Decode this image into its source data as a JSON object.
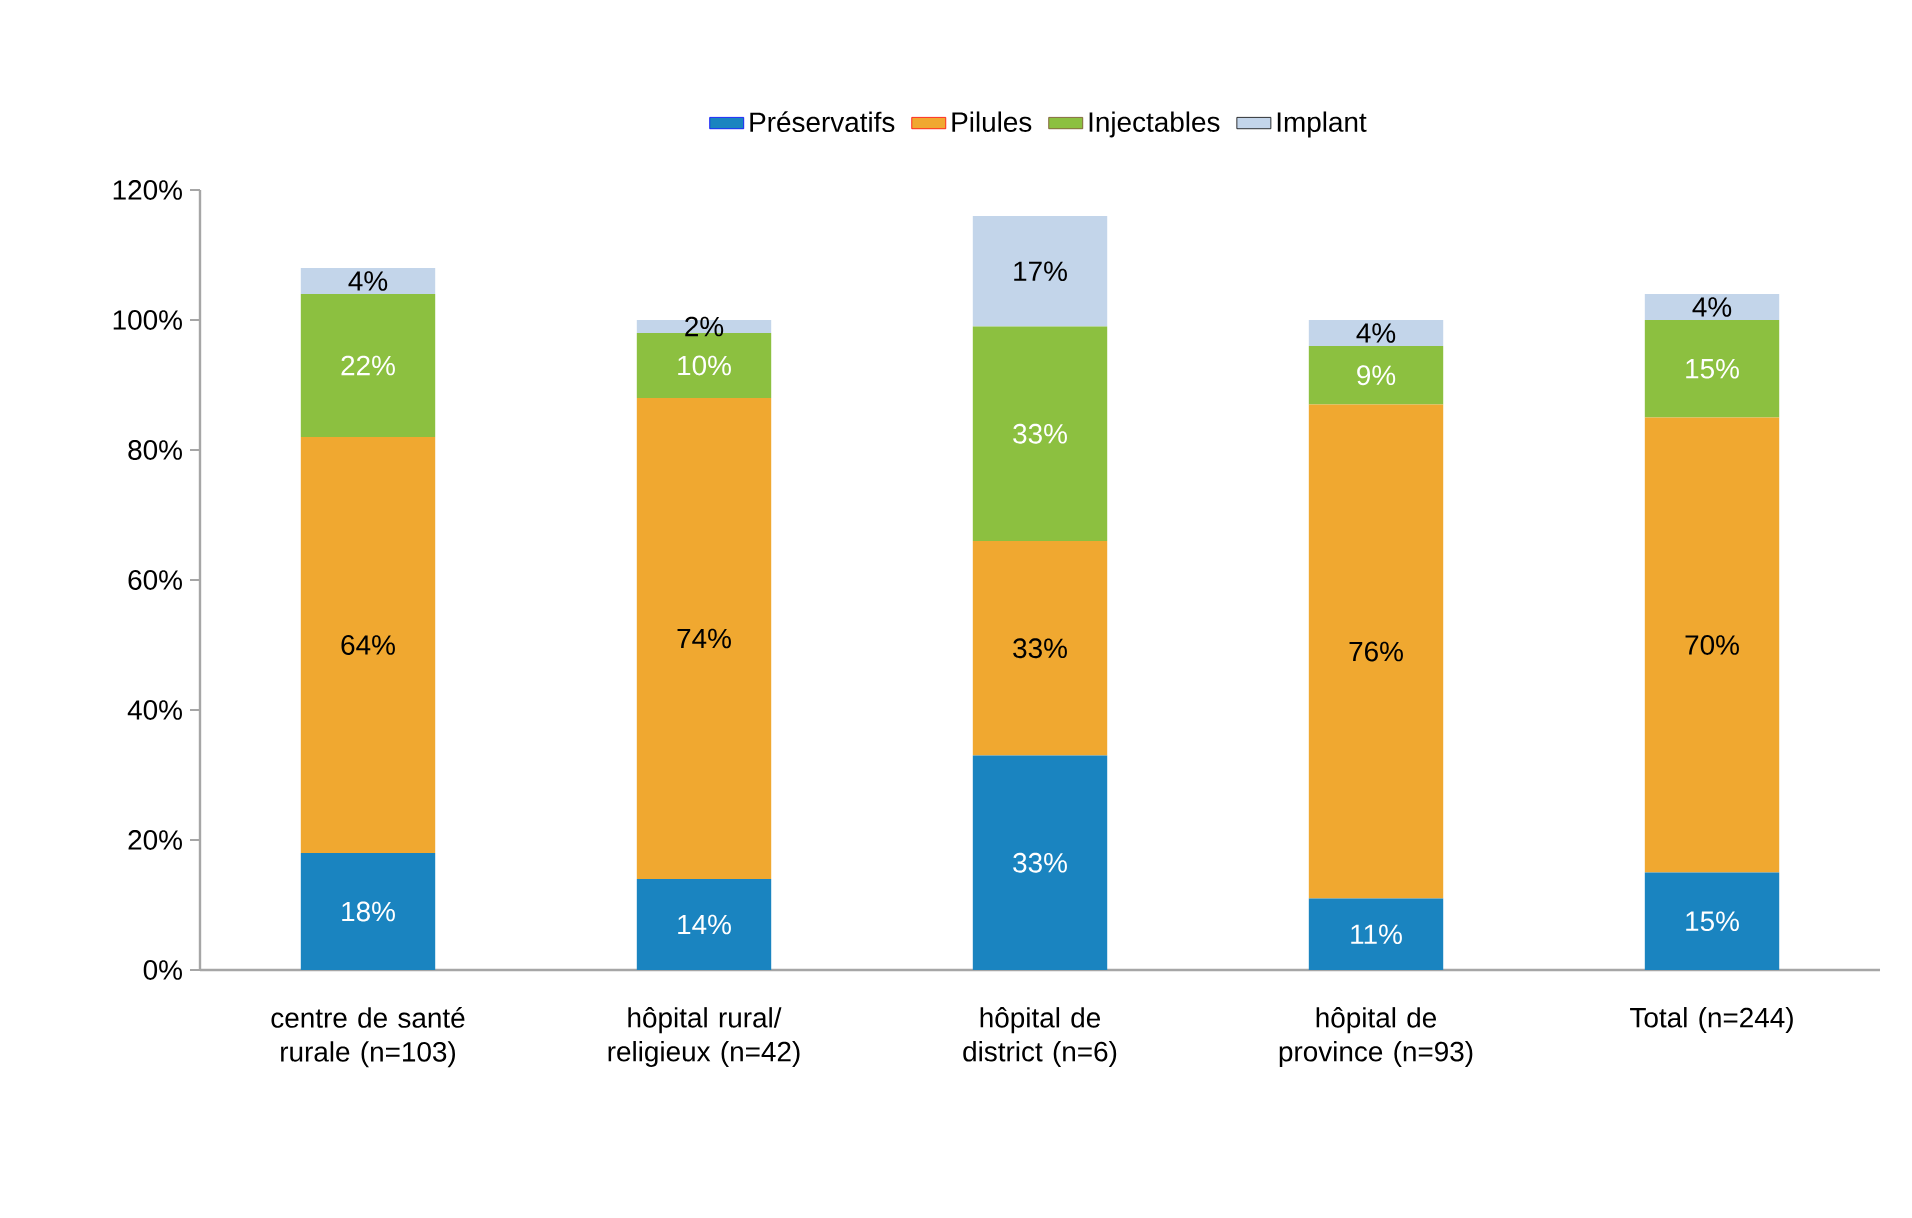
{
  "chart_data": {
    "type": "bar",
    "stacked": true,
    "categories": [
      "centre de santé rurale (n=103)",
      "hôpital rural/ religieux (n=42)",
      "hôpital de district (n=6)",
      "hôpital de province (n=93)",
      "Total (n=244)"
    ],
    "series": [
      {
        "name": "Préservatifs",
        "color": "#1a84c0",
        "values": [
          18,
          14,
          33,
          11,
          15
        ],
        "value_labels": [
          "18%",
          "14%",
          "33%",
          "11%",
          "15%"
        ]
      },
      {
        "name": "Pilules",
        "color": "#f0a830",
        "values": [
          64,
          74,
          33,
          76,
          70
        ],
        "value_labels": [
          "64%",
          "74%",
          "33%",
          "76%",
          "70%"
        ]
      },
      {
        "name": "Injectables",
        "color": "#8cc040",
        "values": [
          22,
          10,
          33,
          9,
          15
        ],
        "value_labels": [
          "22%",
          "10%",
          "33%",
          "9%",
          "15%"
        ]
      },
      {
        "name": "Implant",
        "color": "#c3d5ea",
        "values": [
          4,
          2,
          17,
          4,
          4
        ],
        "value_labels": [
          "4%",
          "2%",
          "17%",
          "4%",
          "4%"
        ]
      }
    ],
    "ylim": [
      0,
      120
    ],
    "yticks": [
      {
        "value": 0,
        "label": "0%"
      },
      {
        "value": 20,
        "label": "20%"
      },
      {
        "value": 40,
        "label": "40%"
      },
      {
        "value": 60,
        "label": "60%"
      },
      {
        "value": 80,
        "label": "80%"
      },
      {
        "value": 100,
        "label": "100%"
      },
      {
        "value": 120,
        "label": "120%"
      }
    ],
    "grid": false,
    "legend": "top"
  }
}
